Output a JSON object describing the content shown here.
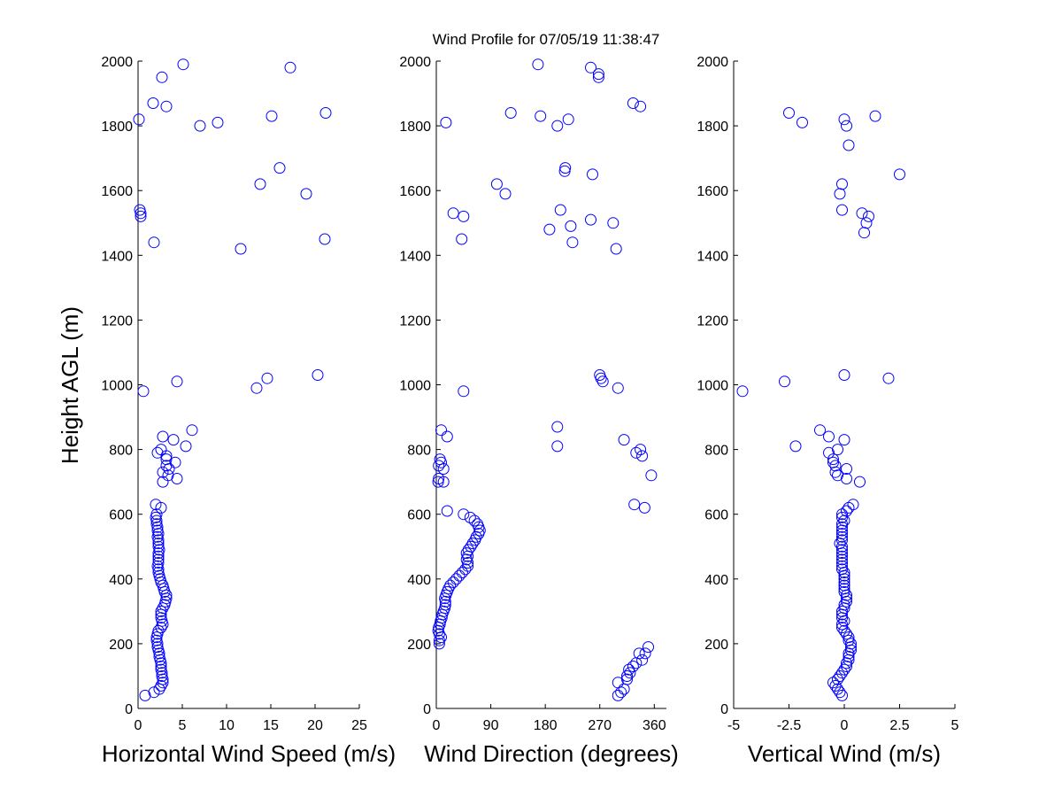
{
  "title": "Wind Profile for  07/05/19 11:38:47",
  "marker_color": "#0000ff",
  "shared_ylabel": "Height AGL (m)",
  "chart_data": [
    {
      "type": "scatter",
      "marker": "open-circle",
      "xlabel": "Horizontal Wind Speed (m/s)",
      "ylabel": "Height AGL (m)",
      "xlim": [
        0,
        25
      ],
      "ylim": [
        0,
        2000
      ],
      "xticks": [
        0,
        5,
        10,
        15,
        20,
        25
      ],
      "xtick_labels": [
        "0",
        "5",
        "10",
        "15",
        "20",
        "25"
      ],
      "yticks": [
        0,
        200,
        400,
        600,
        800,
        1000,
        1200,
        1400,
        1600,
        1800,
        2000
      ],
      "ytick_labels": [
        "0",
        "200",
        "400",
        "600",
        "800",
        "1000",
        "1200",
        "1400",
        "1600",
        "1800",
        "2000"
      ],
      "points": [
        [
          0.8,
          40
        ],
        [
          1.8,
          50
        ],
        [
          2.4,
          60
        ],
        [
          2.6,
          70
        ],
        [
          2.8,
          80
        ],
        [
          2.8,
          90
        ],
        [
          2.7,
          100
        ],
        [
          2.7,
          110
        ],
        [
          2.6,
          120
        ],
        [
          2.6,
          130
        ],
        [
          2.6,
          140
        ],
        [
          2.5,
          150
        ],
        [
          2.4,
          160
        ],
        [
          2.4,
          170
        ],
        [
          2.3,
          180
        ],
        [
          2.2,
          190
        ],
        [
          2.2,
          200
        ],
        [
          2.1,
          210
        ],
        [
          2.1,
          220
        ],
        [
          2.2,
          230
        ],
        [
          2.3,
          240
        ],
        [
          2.6,
          250
        ],
        [
          2.8,
          260
        ],
        [
          2.7,
          270
        ],
        [
          2.6,
          280
        ],
        [
          2.6,
          290
        ],
        [
          2.6,
          300
        ],
        [
          2.8,
          310
        ],
        [
          3.0,
          320
        ],
        [
          3.1,
          330
        ],
        [
          3.2,
          340
        ],
        [
          3.2,
          350
        ],
        [
          3.0,
          360
        ],
        [
          2.9,
          370
        ],
        [
          2.8,
          380
        ],
        [
          2.6,
          390
        ],
        [
          2.5,
          400
        ],
        [
          2.4,
          410
        ],
        [
          2.3,
          420
        ],
        [
          2.3,
          430
        ],
        [
          2.2,
          440
        ],
        [
          2.3,
          450
        ],
        [
          2.3,
          460
        ],
        [
          2.3,
          470
        ],
        [
          2.3,
          480
        ],
        [
          2.4,
          490
        ],
        [
          2.3,
          500
        ],
        [
          2.3,
          510
        ],
        [
          2.3,
          520
        ],
        [
          2.2,
          530
        ],
        [
          2.3,
          540
        ],
        [
          2.2,
          550
        ],
        [
          2.2,
          560
        ],
        [
          2.1,
          570
        ],
        [
          2.1,
          580
        ],
        [
          2.0,
          590
        ],
        [
          2.1,
          600
        ],
        [
          2.6,
          620
        ],
        [
          2.0,
          630
        ],
        [
          2.8,
          700
        ],
        [
          4.4,
          710
        ],
        [
          3.4,
          720
        ],
        [
          2.8,
          730
        ],
        [
          3.5,
          740
        ],
        [
          3.2,
          750
        ],
        [
          4.2,
          760
        ],
        [
          3.2,
          770
        ],
        [
          3.2,
          780
        ],
        [
          2.2,
          790
        ],
        [
          2.6,
          800
        ],
        [
          5.4,
          810
        ],
        [
          4.0,
          830
        ],
        [
          2.8,
          840
        ],
        [
          6.1,
          860
        ],
        [
          0.6,
          980
        ],
        [
          13.4,
          990
        ],
        [
          4.4,
          1010
        ],
        [
          14.6,
          1020
        ],
        [
          20.3,
          1030
        ],
        [
          11.6,
          1420
        ],
        [
          1.8,
          1440
        ],
        [
          21.1,
          1450
        ],
        [
          0.3,
          1520
        ],
        [
          0.3,
          1530
        ],
        [
          0.2,
          1540
        ],
        [
          19.0,
          1590
        ],
        [
          13.8,
          1620
        ],
        [
          16.0,
          1670
        ],
        [
          9.0,
          1810
        ],
        [
          15.1,
          1830
        ],
        [
          0.1,
          1820
        ],
        [
          21.2,
          1840
        ],
        [
          7.0,
          1800
        ],
        [
          3.2,
          1860
        ],
        [
          1.7,
          1870
        ],
        [
          2.7,
          1950
        ],
        [
          17.2,
          1980
        ],
        [
          5.1,
          1990
        ]
      ]
    },
    {
      "type": "scatter",
      "marker": "open-circle",
      "xlabel": "Wind Direction (degrees)",
      "xlim": [
        0,
        380
      ],
      "ylim": [
        0,
        2000
      ],
      "xticks": [
        0,
        90,
        180,
        270,
        360
      ],
      "xtick_labels": [
        "0",
        "90",
        "180",
        "270",
        "360"
      ],
      "yticks": [
        0,
        200,
        400,
        600,
        800,
        1000,
        1200,
        1400,
        1600,
        1800,
        2000
      ],
      "ytick_labels": [
        "0",
        "200",
        "400",
        "600",
        "800",
        "1000",
        "1200",
        "1400",
        "1600",
        "1800",
        "2000"
      ],
      "points": [
        [
          300,
          40
        ],
        [
          305,
          50
        ],
        [
          310,
          60
        ],
        [
          300,
          80
        ],
        [
          315,
          90
        ],
        [
          315,
          100
        ],
        [
          320,
          110
        ],
        [
          318,
          120
        ],
        [
          325,
          130
        ],
        [
          330,
          140
        ],
        [
          340,
          150
        ],
        [
          335,
          170
        ],
        [
          345,
          170
        ],
        [
          350,
          190
        ],
        [
          5,
          200
        ],
        [
          5,
          210
        ],
        [
          8,
          220
        ],
        [
          5,
          230
        ],
        [
          3,
          240
        ],
        [
          4,
          250
        ],
        [
          6,
          260
        ],
        [
          7,
          270
        ],
        [
          9,
          280
        ],
        [
          10,
          290
        ],
        [
          12,
          300
        ],
        [
          14,
          310
        ],
        [
          15,
          320
        ],
        [
          15,
          330
        ],
        [
          14,
          340
        ],
        [
          16,
          350
        ],
        [
          18,
          360
        ],
        [
          20,
          370
        ],
        [
          23,
          380
        ],
        [
          28,
          390
        ],
        [
          33,
          400
        ],
        [
          38,
          410
        ],
        [
          43,
          420
        ],
        [
          48,
          430
        ],
        [
          52,
          440
        ],
        [
          52,
          450
        ],
        [
          50,
          460
        ],
        [
          52,
          470
        ],
        [
          50,
          480
        ],
        [
          53,
          490
        ],
        [
          57,
          500
        ],
        [
          60,
          510
        ],
        [
          64,
          520
        ],
        [
          66,
          530
        ],
        [
          70,
          540
        ],
        [
          72,
          550
        ],
        [
          70,
          560
        ],
        [
          68,
          570
        ],
        [
          63,
          580
        ],
        [
          56,
          590
        ],
        [
          45,
          600
        ],
        [
          18,
          610
        ],
        [
          344,
          620
        ],
        [
          327,
          630
        ],
        [
          3,
          700
        ],
        [
          12,
          700
        ],
        [
          4,
          710
        ],
        [
          355,
          720
        ],
        [
          12,
          740
        ],
        [
          4,
          750
        ],
        [
          8,
          760
        ],
        [
          6,
          770
        ],
        [
          340,
          780
        ],
        [
          330,
          790
        ],
        [
          337,
          800
        ],
        [
          200,
          810
        ],
        [
          310,
          830
        ],
        [
          18,
          840
        ],
        [
          8,
          860
        ],
        [
          200,
          870
        ],
        [
          45,
          980
        ],
        [
          300,
          990
        ],
        [
          275,
          1010
        ],
        [
          272,
          1020
        ],
        [
          270,
          1030
        ],
        [
          297,
          1420
        ],
        [
          225,
          1440
        ],
        [
          42,
          1450
        ],
        [
          187,
          1480
        ],
        [
          222,
          1490
        ],
        [
          292,
          1500
        ],
        [
          255,
          1510
        ],
        [
          28,
          1530
        ],
        [
          45,
          1520
        ],
        [
          205,
          1540
        ],
        [
          114,
          1590
        ],
        [
          100,
          1620
        ],
        [
          258,
          1650
        ],
        [
          212,
          1660
        ],
        [
          213,
          1670
        ],
        [
          200,
          1800
        ],
        [
          16,
          1810
        ],
        [
          218,
          1820
        ],
        [
          172,
          1830
        ],
        [
          123,
          1840
        ],
        [
          337,
          1860
        ],
        [
          325,
          1870
        ],
        [
          268,
          1950
        ],
        [
          268,
          1960
        ],
        [
          255,
          1980
        ],
        [
          168,
          1990
        ]
      ]
    },
    {
      "type": "scatter",
      "marker": "open-circle",
      "xlabel": "Vertical Wind (m/s)",
      "xlim": [
        -5,
        5
      ],
      "ylim": [
        0,
        2000
      ],
      "xticks": [
        -5,
        -2.5,
        0,
        2.5,
        5
      ],
      "xtick_labels": [
        "-5",
        "-2.5",
        "0",
        "2.5",
        "5"
      ],
      "yticks": [
        0,
        200,
        400,
        600,
        800,
        1000,
        1200,
        1400,
        1600,
        1800,
        2000
      ],
      "ytick_labels": [
        "0",
        "200",
        "400",
        "600",
        "800",
        "1000",
        "1200",
        "1400",
        "1600",
        "1800",
        "2000"
      ],
      "points": [
        [
          -0.1,
          40
        ],
        [
          -0.2,
          50
        ],
        [
          -0.3,
          60
        ],
        [
          -0.4,
          70
        ],
        [
          -0.5,
          80
        ],
        [
          -0.3,
          90
        ],
        [
          -0.2,
          100
        ],
        [
          -0.1,
          110
        ],
        [
          0.0,
          120
        ],
        [
          0.1,
          130
        ],
        [
          0.1,
          140
        ],
        [
          0.2,
          150
        ],
        [
          0.2,
          160
        ],
        [
          0.2,
          170
        ],
        [
          0.3,
          180
        ],
        [
          0.3,
          190
        ],
        [
          0.3,
          200
        ],
        [
          0.2,
          210
        ],
        [
          0.2,
          220
        ],
        [
          0.1,
          230
        ],
        [
          0.0,
          240
        ],
        [
          -0.1,
          250
        ],
        [
          -0.1,
          260
        ],
        [
          0.0,
          270
        ],
        [
          -0.1,
          280
        ],
        [
          -0.1,
          290
        ],
        [
          -0.1,
          300
        ],
        [
          0.0,
          310
        ],
        [
          0.0,
          320
        ],
        [
          0.1,
          330
        ],
        [
          0.1,
          340
        ],
        [
          0.1,
          350
        ],
        [
          0.0,
          360
        ],
        [
          0.0,
          370
        ],
        [
          0.0,
          380
        ],
        [
          0.0,
          390
        ],
        [
          0.0,
          400
        ],
        [
          0.0,
          410
        ],
        [
          0.0,
          420
        ],
        [
          -0.1,
          430
        ],
        [
          -0.1,
          440
        ],
        [
          -0.1,
          450
        ],
        [
          -0.1,
          460
        ],
        [
          -0.1,
          470
        ],
        [
          -0.1,
          480
        ],
        [
          -0.1,
          490
        ],
        [
          -0.1,
          500
        ],
        [
          -0.2,
          510
        ],
        [
          -0.1,
          520
        ],
        [
          -0.1,
          530
        ],
        [
          -0.1,
          540
        ],
        [
          -0.1,
          550
        ],
        [
          -0.1,
          560
        ],
        [
          -0.1,
          570
        ],
        [
          0.0,
          580
        ],
        [
          -0.1,
          590
        ],
        [
          -0.1,
          600
        ],
        [
          0.1,
          610
        ],
        [
          0.2,
          620
        ],
        [
          0.4,
          630
        ],
        [
          0.7,
          700
        ],
        [
          0.1,
          710
        ],
        [
          -0.3,
          720
        ],
        [
          -0.4,
          730
        ],
        [
          0.1,
          740
        ],
        [
          -0.4,
          750
        ],
        [
          -0.5,
          760
        ],
        [
          -0.5,
          770
        ],
        [
          -0.7,
          790
        ],
        [
          -0.3,
          800
        ],
        [
          -2.2,
          810
        ],
        [
          0.0,
          830
        ],
        [
          -0.7,
          840
        ],
        [
          -1.1,
          860
        ],
        [
          -4.6,
          980
        ],
        [
          -2.7,
          1010
        ],
        [
          2.0,
          1020
        ],
        [
          0.0,
          1030
        ],
        [
          0.9,
          1470
        ],
        [
          1.0,
          1500
        ],
        [
          1.1,
          1520
        ],
        [
          0.8,
          1530
        ],
        [
          -0.1,
          1540
        ],
        [
          -0.2,
          1590
        ],
        [
          -0.1,
          1620
        ],
        [
          2.5,
          1650
        ],
        [
          0.2,
          1740
        ],
        [
          0.1,
          1800
        ],
        [
          -1.9,
          1810
        ],
        [
          0.0,
          1820
        ],
        [
          1.4,
          1830
        ],
        [
          -2.5,
          1840
        ]
      ]
    }
  ]
}
